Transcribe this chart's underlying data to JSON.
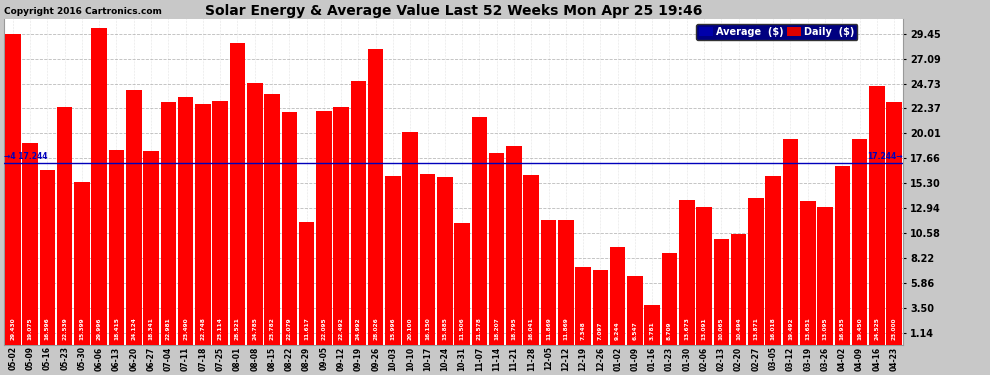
{
  "title": "Solar Energy & Average Value Last 52 Weeks Mon Apr 25 19:46",
  "copyright": "Copyright 2016 Cartronics.com",
  "bar_color": "#ff0000",
  "average_color": "#0000bb",
  "average_value": 17.244,
  "yticks": [
    1.14,
    3.5,
    5.86,
    8.22,
    10.58,
    12.94,
    15.3,
    17.66,
    20.01,
    22.37,
    24.73,
    27.09,
    29.45
  ],
  "ylim_min": 0,
  "ylim_max": 30.8,
  "legend_avg_color": "#0000aa",
  "legend_daily_color": "#dd0000",
  "categories": [
    "05-02",
    "05-09",
    "05-16",
    "05-23",
    "05-30",
    "06-06",
    "06-13",
    "06-20",
    "06-27",
    "07-04",
    "07-11",
    "07-18",
    "07-25",
    "08-01",
    "08-08",
    "08-15",
    "08-22",
    "08-29",
    "09-05",
    "09-12",
    "09-19",
    "09-26",
    "10-03",
    "10-10",
    "10-17",
    "10-24",
    "10-31",
    "11-07",
    "11-14",
    "11-21",
    "11-28",
    "12-05",
    "12-12",
    "12-19",
    "12-26",
    "01-02",
    "01-09",
    "01-16",
    "01-23",
    "01-30",
    "02-06",
    "02-13",
    "02-20",
    "02-27",
    "03-05",
    "03-12",
    "03-19",
    "03-26",
    "04-02",
    "04-09",
    "04-16",
    "04-23"
  ],
  "values": [
    29.43,
    19.075,
    16.596,
    22.539,
    15.399,
    29.996,
    18.415,
    24.124,
    18.341,
    22.981,
    23.49,
    22.748,
    23.114,
    28.521,
    24.785,
    23.782,
    22.079,
    11.617,
    22.095,
    22.492,
    24.992,
    28.026,
    15.996,
    20.1,
    16.15,
    15.885,
    11.506,
    21.578,
    18.207,
    18.795,
    16.041,
    11.869,
    11.869,
    7.348,
    7.097,
    9.244,
    6.547,
    3.781,
    8.709,
    13.673,
    13.091,
    10.065,
    10.494,
    13.871,
    16.018,
    19.492,
    13.651,
    13.095,
    16.935,
    19.45,
    24.525,
    23.0
  ],
  "bar_value_labels": [
    "29.430",
    "19.075",
    "16.596",
    "22.539",
    "15.399",
    "29.996",
    "18.415",
    "24.124",
    "18.341",
    "22.981",
    "23.490",
    "22.748",
    "23.114",
    "28.521",
    "24.785",
    "23.782",
    "22.079",
    "11.617",
    "22.095",
    "22.492",
    "24.992",
    "28.026",
    "15.996",
    "20.100",
    "16.150",
    "15.885",
    "11.506",
    "21.578",
    "18.207",
    "18.795",
    "16.041",
    "11.869",
    "11.869",
    "7.348",
    "7.097",
    "9.244",
    "6.547",
    "3.781",
    "8.709",
    "13.673",
    "13.091",
    "10.065",
    "10.494",
    "13.871",
    "16.018",
    "19.492",
    "13.651",
    "13.095",
    "16.935",
    "19.450",
    "24.525",
    "23.000"
  ],
  "background_color": "#c8c8c8",
  "plot_bg_color": "#ffffff",
  "grid_color": "#aaaaaa",
  "title_fontsize": 10,
  "copyright_fontsize": 6.5,
  "ytick_fontsize": 7,
  "xtick_fontsize": 5.5,
  "bar_label_fontsize": 4.2
}
